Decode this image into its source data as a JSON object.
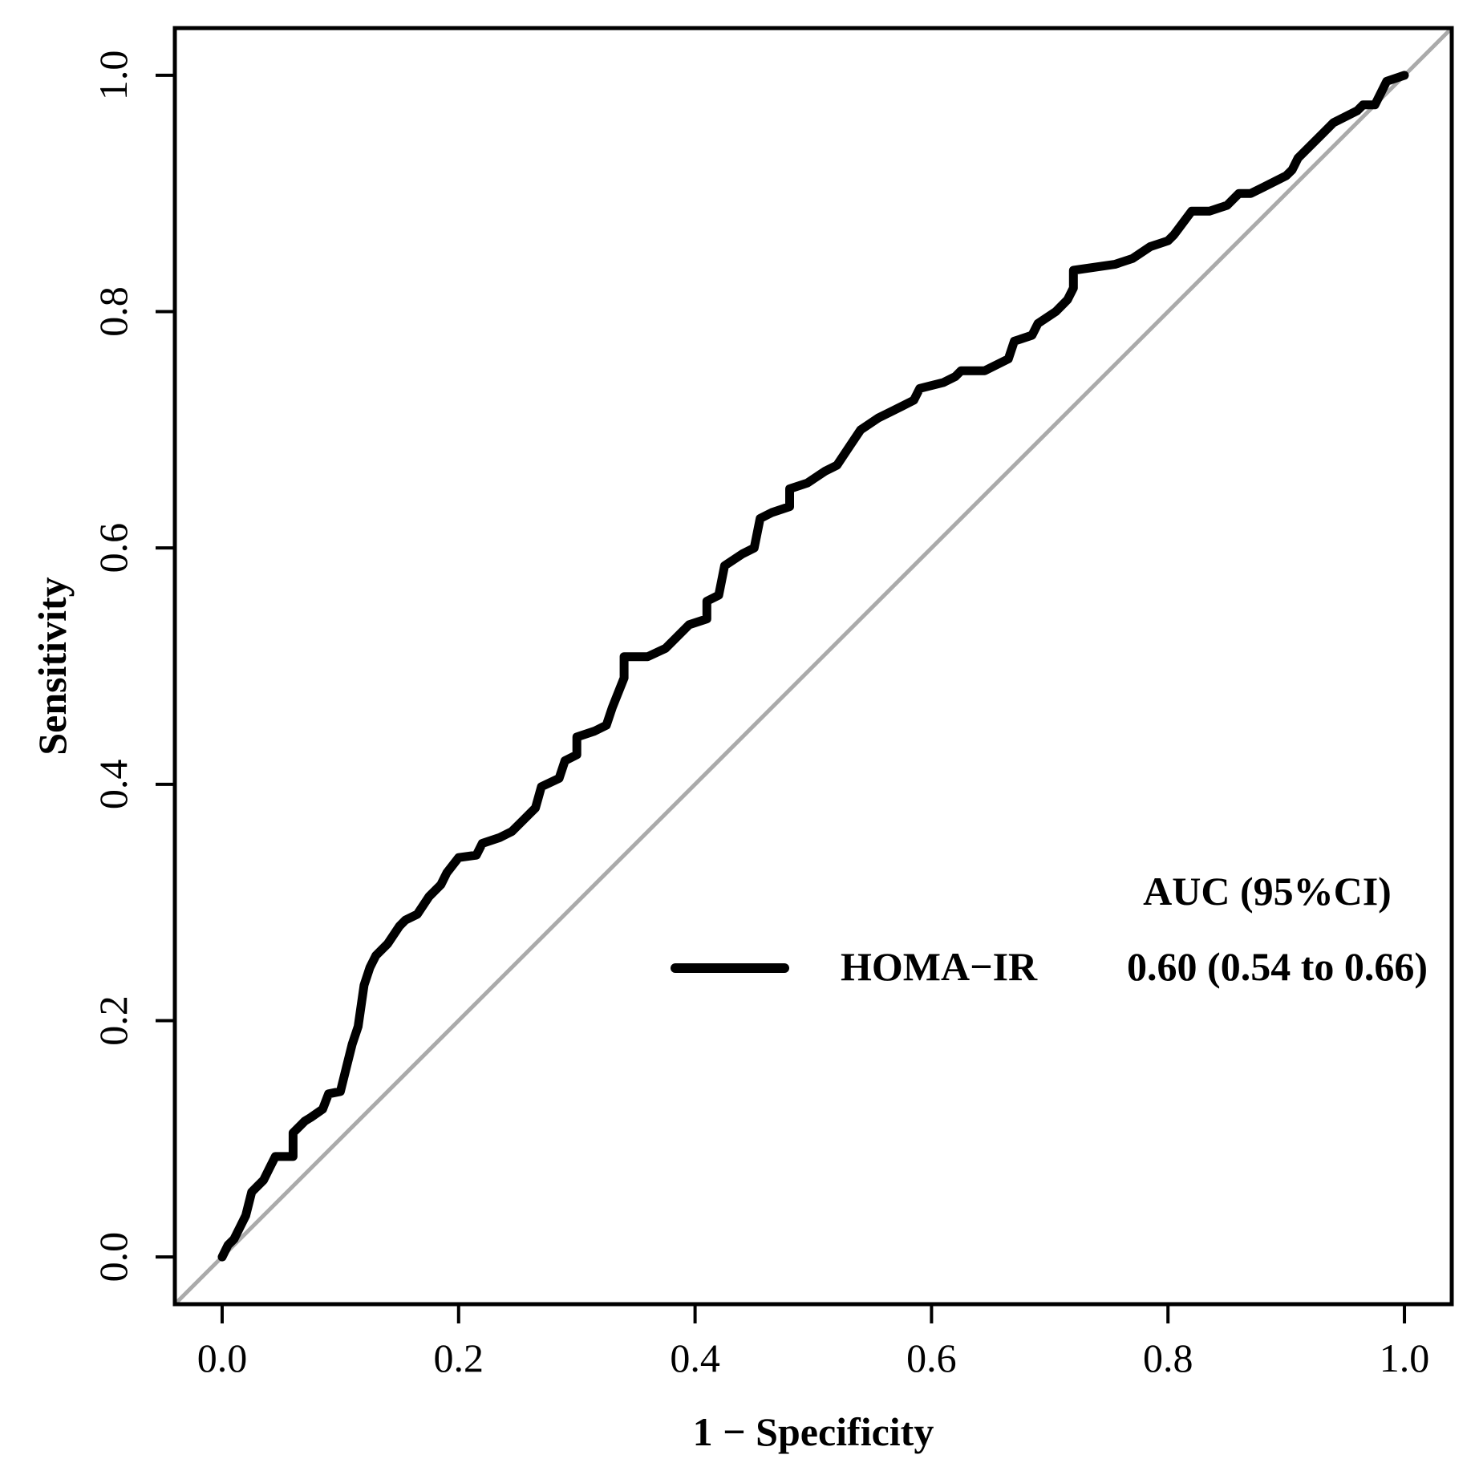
{
  "chart_data": {
    "type": "line",
    "title": "",
    "xlabel": "1 − Specificity",
    "ylabel": "Sensitivity",
    "xlim": [
      -0.04,
      1.04
    ],
    "ylim": [
      -0.04,
      1.04
    ],
    "x_ticks": [
      0.0,
      0.2,
      0.4,
      0.6,
      0.8,
      1.0
    ],
    "x_tick_labels": [
      "0.0",
      "0.2",
      "0.4",
      "0.6",
      "0.8",
      "1.0"
    ],
    "y_ticks": [
      0.0,
      0.2,
      0.4,
      0.6,
      0.8,
      1.0
    ],
    "y_tick_labels": [
      "0.0",
      "0.2",
      "0.4",
      "0.6",
      "0.8",
      "1.0"
    ],
    "grid": false,
    "legend_position": "bottom-right",
    "legend": {
      "header": "AUC (95%CI)",
      "entries": [
        {
          "label": "HOMA−IR",
          "value": "0.60 (0.54 to 0.66)"
        }
      ]
    },
    "series": [
      {
        "name": "HOMA−IR",
        "color": "#000000",
        "x": [
          0.0,
          0.005,
          0.01,
          0.015,
          0.02,
          0.025,
          0.03,
          0.035,
          0.04,
          0.045,
          0.06,
          0.06,
          0.07,
          0.075,
          0.085,
          0.09,
          0.1,
          0.105,
          0.11,
          0.115,
          0.12,
          0.125,
          0.13,
          0.14,
          0.15,
          0.155,
          0.165,
          0.175,
          0.185,
          0.19,
          0.2,
          0.215,
          0.22,
          0.235,
          0.245,
          0.255,
          0.265,
          0.27,
          0.285,
          0.29,
          0.3,
          0.3,
          0.315,
          0.325,
          0.33,
          0.34,
          0.34,
          0.36,
          0.375,
          0.38,
          0.395,
          0.41,
          0.41,
          0.42,
          0.425,
          0.44,
          0.45,
          0.455,
          0.465,
          0.48,
          0.48,
          0.495,
          0.51,
          0.52,
          0.53,
          0.54,
          0.555,
          0.565,
          0.575,
          0.585,
          0.59,
          0.61,
          0.62,
          0.625,
          0.645,
          0.665,
          0.67,
          0.685,
          0.69,
          0.705,
          0.715,
          0.72,
          0.72,
          0.755,
          0.77,
          0.785,
          0.8,
          0.805,
          0.82,
          0.835,
          0.85,
          0.86,
          0.87,
          0.88,
          0.9,
          0.905,
          0.91,
          0.93,
          0.94,
          0.96,
          0.965,
          0.975,
          0.98,
          0.985,
          1.0
        ],
        "y": [
          0.0,
          0.01,
          0.015,
          0.025,
          0.035,
          0.055,
          0.06,
          0.065,
          0.075,
          0.085,
          0.085,
          0.105,
          0.115,
          0.118,
          0.125,
          0.138,
          0.14,
          0.16,
          0.18,
          0.195,
          0.23,
          0.245,
          0.255,
          0.265,
          0.28,
          0.285,
          0.29,
          0.305,
          0.315,
          0.325,
          0.338,
          0.34,
          0.35,
          0.355,
          0.36,
          0.37,
          0.38,
          0.398,
          0.405,
          0.42,
          0.425,
          0.44,
          0.445,
          0.45,
          0.465,
          0.49,
          0.508,
          0.508,
          0.515,
          0.52,
          0.535,
          0.54,
          0.555,
          0.56,
          0.585,
          0.595,
          0.6,
          0.625,
          0.63,
          0.635,
          0.65,
          0.655,
          0.665,
          0.67,
          0.685,
          0.7,
          0.71,
          0.715,
          0.72,
          0.725,
          0.735,
          0.74,
          0.745,
          0.75,
          0.75,
          0.76,
          0.775,
          0.78,
          0.79,
          0.8,
          0.81,
          0.82,
          0.835,
          0.84,
          0.845,
          0.855,
          0.86,
          0.865,
          0.885,
          0.885,
          0.89,
          0.9,
          0.9,
          0.905,
          0.915,
          0.92,
          0.93,
          0.95,
          0.96,
          0.97,
          0.975,
          0.975,
          0.985,
          0.995,
          1.0
        ]
      },
      {
        "name": "reference",
        "color": "#aaaaaa",
        "x": [
          -0.04,
          1.04
        ],
        "y": [
          -0.04,
          1.04
        ]
      }
    ]
  }
}
